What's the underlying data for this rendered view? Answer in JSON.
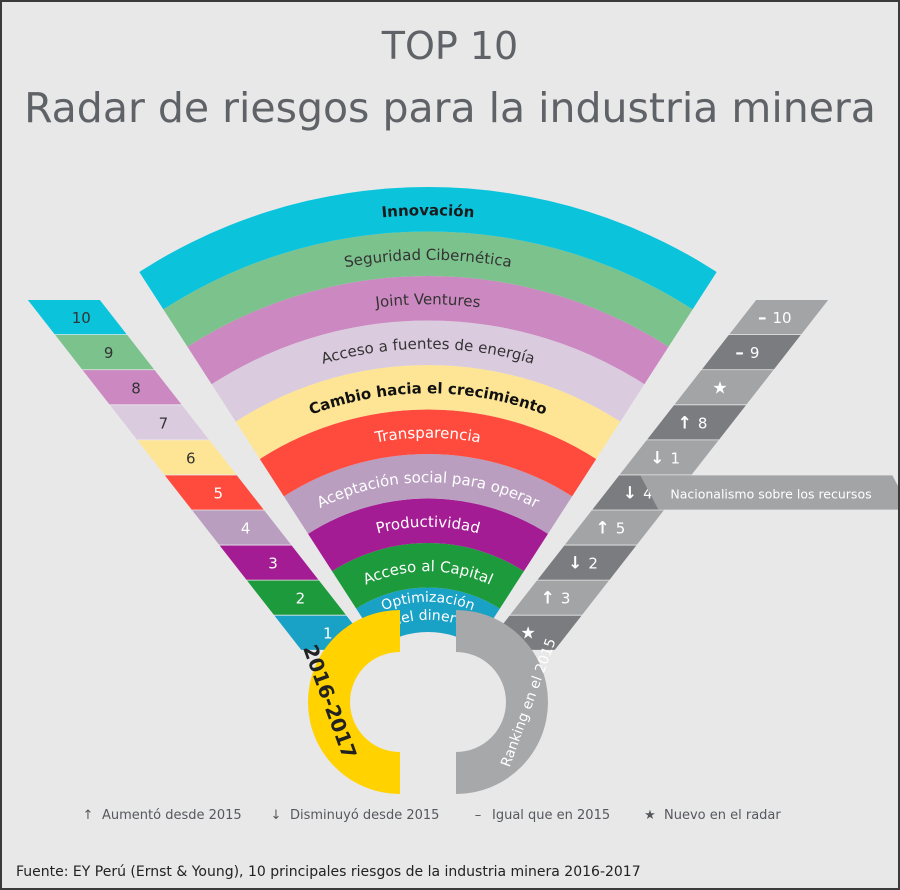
{
  "title": {
    "line1": "TOP 10",
    "line2": "Radar de riesgos para la industria minera"
  },
  "risks": [
    {
      "rank": 10,
      "name": "Innovación",
      "color": "#0bc4dc",
      "text": "#1b1b1b",
      "bold": true,
      "prev_symbol": "–",
      "prev_rank": "10"
    },
    {
      "rank": 9,
      "name": "Seguridad Cibernética",
      "color": "#7cc28c",
      "text": "#333333",
      "bold": false,
      "prev_symbol": "–",
      "prev_rank": "9"
    },
    {
      "rank": 8,
      "name": "Joint Ventures",
      "color": "#cc88c1",
      "text": "#333333",
      "bold": false,
      "prev_symbol": "★",
      "prev_rank": ""
    },
    {
      "rank": 7,
      "name": "Acceso a fuentes de energía",
      "color": "#dbcbdf",
      "text": "#333333",
      "bold": false,
      "prev_symbol": "↑",
      "prev_rank": "8"
    },
    {
      "rank": 6,
      "name": "Cambio hacia el crecimiento",
      "color": "#fde595",
      "text": "#111111",
      "bold": true,
      "prev_symbol": "↓",
      "prev_rank": "1"
    },
    {
      "rank": 5,
      "name": "Transparencia",
      "color": "#ff4b3d",
      "text": "#ffffff",
      "bold": false,
      "prev_symbol": "↓",
      "prev_rank": "4",
      "prev_note": "Nacionalismo sobre los recursos"
    },
    {
      "rank": 4,
      "name": "Aceptación social para operar",
      "color": "#b99ec0",
      "text": "#ffffff",
      "bold": false,
      "prev_symbol": "↑",
      "prev_rank": "5"
    },
    {
      "rank": 3,
      "name": "Productividad",
      "color": "#a41c93",
      "text": "#ffffff",
      "bold": false,
      "prev_symbol": "↓",
      "prev_rank": "2"
    },
    {
      "rank": 2,
      "name": "Acceso al Capital",
      "color": "#1c9a3c",
      "text": "#ffffff",
      "bold": false,
      "prev_symbol": "↑",
      "prev_rank": "3"
    },
    {
      "rank": 1,
      "name_lines": [
        "Optimización",
        "del dinero"
      ],
      "color": "#1aa1c6",
      "text": "#ffffff",
      "bold": false,
      "prev_symbol": "★",
      "prev_rank": ""
    }
  ],
  "badges": {
    "current": "2016-2017",
    "previous": "Ranking en el 2015",
    "current_color": "#ffd200",
    "previous_color": "#a7a8aa"
  },
  "legend": [
    {
      "icon": "arrow-up-icon",
      "symbol": "↑",
      "label": "Aumentó desde 2015"
    },
    {
      "icon": "arrow-down-icon",
      "symbol": "↓",
      "label": "Disminuyó desde 2015"
    },
    {
      "icon": "minus-icon",
      "symbol": "–",
      "label": "Igual que en 2015"
    },
    {
      "icon": "star-icon",
      "symbol": "★",
      "label": "Nuevo en el radar"
    }
  ],
  "source": "Fuente:  EY Perú (Ernst & Young), 10 principales riesgos de la industria minera 2016-2017"
}
